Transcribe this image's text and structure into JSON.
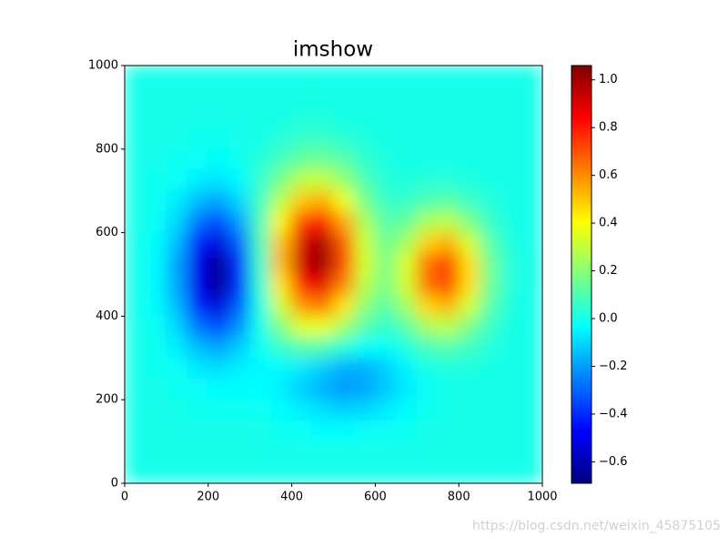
{
  "chart_data": {
    "type": "heatmap",
    "title": "imshow",
    "colormap": "jet",
    "x": [
      25,
      75,
      125,
      175,
      225,
      275,
      325,
      375,
      425,
      475,
      525,
      575,
      625,
      675,
      725,
      775,
      825,
      875,
      925,
      975
    ],
    "y": [
      975,
      925,
      875,
      825,
      775,
      725,
      675,
      625,
      575,
      525,
      475,
      425,
      375,
      325,
      275,
      225,
      175,
      125,
      75,
      25
    ],
    "z": [
      [
        0,
        0,
        0,
        0,
        0,
        0,
        0,
        0,
        0,
        0,
        0,
        0,
        0,
        0,
        0,
        0,
        0,
        0,
        0,
        0
      ],
      [
        0,
        0,
        0,
        0,
        0,
        0,
        0,
        0,
        0.01,
        0.01,
        0,
        0,
        0,
        0,
        0,
        0,
        0,
        0,
        0,
        0
      ],
      [
        0,
        0,
        0,
        0,
        0,
        0,
        0,
        0.01,
        0.02,
        0.02,
        0.01,
        0.01,
        0,
        0,
        0,
        0,
        0,
        0,
        0,
        0
      ],
      [
        0,
        0,
        0,
        -0.01,
        -0.01,
        0,
        0.01,
        0.03,
        0.06,
        0.06,
        0.04,
        0.02,
        0.01,
        0,
        0,
        0,
        0,
        0,
        0,
        0
      ],
      [
        0,
        0,
        -0.01,
        -0.02,
        -0.03,
        -0.01,
        0.03,
        0.08,
        0.14,
        0.15,
        0.11,
        0.05,
        0.02,
        0.01,
        0.01,
        0.01,
        0,
        0,
        0,
        0
      ],
      [
        0,
        -0.01,
        -0.02,
        -0.06,
        -0.08,
        -0.04,
        0.05,
        0.17,
        0.29,
        0.31,
        0.22,
        0.1,
        0.03,
        0.02,
        0.03,
        0.03,
        0.02,
        0.01,
        0,
        0
      ],
      [
        0,
        -0.01,
        -0.06,
        -0.15,
        -0.19,
        -0.1,
        0.07,
        0.29,
        0.5,
        0.55,
        0.38,
        0.17,
        0.06,
        0.06,
        0.1,
        0.12,
        0.07,
        0.03,
        0.01,
        0
      ],
      [
        0,
        -0.02,
        -0.1,
        -0.27,
        -0.35,
        -0.2,
        0.09,
        0.42,
        0.73,
        0.8,
        0.56,
        0.26,
        0.11,
        0.14,
        0.26,
        0.29,
        0.18,
        0.06,
        0.01,
        0
      ],
      [
        0,
        -0.03,
        -0.15,
        -0.41,
        -0.53,
        -0.31,
        0.08,
        0.51,
        0.9,
        0.99,
        0.69,
        0.32,
        0.15,
        0.25,
        0.48,
        0.54,
        0.33,
        0.12,
        0.02,
        0
      ],
      [
        0,
        -0.04,
        -0.19,
        -0.5,
        -0.66,
        -0.39,
        0.06,
        0.53,
        0.93,
        1.02,
        0.72,
        0.33,
        0.18,
        0.34,
        0.65,
        0.73,
        0.46,
        0.16,
        0.03,
        0
      ],
      [
        0,
        -0.04,
        -0.19,
        -0.5,
        -0.66,
        -0.39,
        0.04,
        0.45,
        0.81,
        0.89,
        0.62,
        0.29,
        0.17,
        0.33,
        0.65,
        0.73,
        0.46,
        0.16,
        0.03,
        0
      ],
      [
        0,
        -0.03,
        -0.15,
        -0.41,
        -0.54,
        -0.32,
        0.01,
        0.33,
        0.59,
        0.65,
        0.45,
        0.21,
        0.12,
        0.25,
        0.48,
        0.54,
        0.33,
        0.12,
        0.02,
        0
      ],
      [
        0,
        -0.02,
        -0.1,
        -0.27,
        -0.35,
        -0.22,
        0,
        0.19,
        0.35,
        0.37,
        0.25,
        0.11,
        0.05,
        0.12,
        0.26,
        0.29,
        0.18,
        0.06,
        0.01,
        0
      ],
      [
        0,
        -0.01,
        -0.06,
        -0.15,
        -0.19,
        -0.12,
        -0.02,
        0.06,
        0.11,
        0.1,
        0.03,
        -0.03,
        -0.03,
        0.02,
        0.09,
        0.11,
        0.07,
        0.03,
        0.01,
        0
      ],
      [
        0,
        -0.01,
        -0.02,
        -0.07,
        -0.09,
        -0.06,
        -0.04,
        -0.04,
        -0.07,
        -0.12,
        -0.17,
        -0.17,
        -0.12,
        -0.05,
        0,
        0.02,
        0.02,
        0.01,
        0,
        0
      ],
      [
        0,
        0,
        -0.01,
        -0.02,
        -0.03,
        -0.03,
        -0.03,
        -0.06,
        -0.12,
        -0.17,
        -0.21,
        -0.19,
        -0.13,
        -0.07,
        -0.02,
        0,
        0,
        0,
        0,
        0
      ],
      [
        0,
        0,
        0,
        -0.01,
        -0.01,
        -0.01,
        -0.02,
        -0.03,
        -0.06,
        -0.09,
        -0.11,
        -0.1,
        -0.07,
        -0.03,
        -0.01,
        0,
        0,
        0,
        0,
        0
      ],
      [
        0,
        0,
        0,
        0,
        0,
        0,
        0,
        -0.01,
        -0.02,
        -0.03,
        -0.03,
        -0.02,
        -0.02,
        -0.01,
        0,
        0,
        0,
        0,
        0,
        0
      ],
      [
        0,
        0,
        0,
        0,
        0,
        0,
        0,
        0,
        0,
        0,
        0,
        0,
        0,
        0,
        0,
        0,
        0,
        0,
        0,
        0
      ],
      [
        0,
        0,
        0,
        0,
        0,
        0,
        0,
        0,
        0,
        0,
        0,
        0,
        0,
        0,
        0,
        0,
        0,
        0,
        0,
        0
      ]
    ],
    "xlim": [
      0,
      1000
    ],
    "ylim": [
      0,
      1000
    ],
    "xticks": [
      0,
      200,
      400,
      600,
      800,
      1000
    ],
    "yticks": [
      0,
      200,
      400,
      600,
      800,
      1000
    ],
    "clim": [
      -0.69,
      1.06
    ],
    "cticks": [
      {
        "value": -0.6,
        "label": "−0.6"
      },
      {
        "value": -0.4,
        "label": "−0.4"
      },
      {
        "value": -0.2,
        "label": "−0.2"
      },
      {
        "value": 0,
        "label": "0.0"
      },
      0.2,
      0.4,
      0.6,
      0.8,
      {
        "value": 1,
        "label": "1.0"
      }
    ],
    "watermark": "https://blog.csdn.net/weixin_45875105"
  }
}
